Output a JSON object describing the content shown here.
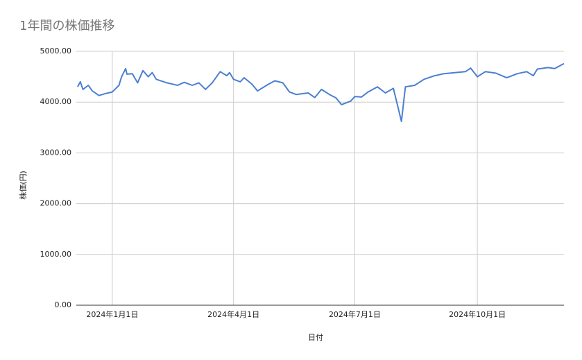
{
  "chart_data": {
    "type": "line",
    "title": "1年間の株価推移",
    "x_label": "日付",
    "y_label": "株価(円)",
    "x": [
      "2023-12-06",
      "2023-12-08",
      "2023-12-10",
      "2023-12-14",
      "2023-12-17",
      "2023-12-22",
      "2023-12-27",
      "2024-01-01",
      "2024-01-06",
      "2024-01-08",
      "2024-01-11",
      "2024-01-12",
      "2024-01-16",
      "2024-01-20",
      "2024-01-24",
      "2024-01-28",
      "2024-01-31",
      "2024-02-03",
      "2024-02-11",
      "2024-02-19",
      "2024-02-24",
      "2024-03-01",
      "2024-03-06",
      "2024-03-11",
      "2024-03-16",
      "2024-03-22",
      "2024-03-27",
      "2024-03-29",
      "2024-04-01",
      "2024-04-06",
      "2024-04-09",
      "2024-04-15",
      "2024-04-19",
      "2024-04-27",
      "2024-05-02",
      "2024-05-08",
      "2024-05-13",
      "2024-05-18",
      "2024-05-27",
      "2024-06-01",
      "2024-06-06",
      "2024-06-12",
      "2024-06-17",
      "2024-06-21",
      "2024-06-28",
      "2024-07-01",
      "2024-07-06",
      "2024-07-11",
      "2024-07-18",
      "2024-07-24",
      "2024-07-30",
      "2024-08-05",
      "2024-08-08",
      "2024-08-15",
      "2024-08-22",
      "2024-08-30",
      "2024-09-06",
      "2024-09-14",
      "2024-09-22",
      "2024-09-26",
      "2024-10-01",
      "2024-10-07",
      "2024-10-15",
      "2024-10-23",
      "2024-10-31",
      "2024-11-07",
      "2024-11-12",
      "2024-11-15",
      "2024-11-23",
      "2024-11-28",
      "2024-12-05"
    ],
    "series": [
      {
        "name": "株価",
        "color": "#4a7fd1",
        "values": [
          4300,
          4400,
          4250,
          4330,
          4220,
          4130,
          4170,
          4200,
          4330,
          4500,
          4660,
          4550,
          4560,
          4380,
          4620,
          4500,
          4580,
          4450,
          4380,
          4330,
          4390,
          4330,
          4380,
          4250,
          4380,
          4600,
          4520,
          4580,
          4450,
          4400,
          4480,
          4350,
          4220,
          4350,
          4420,
          4380,
          4200,
          4150,
          4180,
          4090,
          4250,
          4150,
          4080,
          3950,
          4020,
          4110,
          4100,
          4200,
          4300,
          4180,
          4270,
          3620,
          4300,
          4330,
          4450,
          4520,
          4560,
          4580,
          4600,
          4670,
          4500,
          4600,
          4570,
          4480,
          4560,
          4600,
          4520,
          4650,
          4680,
          4660,
          4760
        ]
      }
    ],
    "xlim": [
      "2023-12-05",
      "2024-12-05"
    ],
    "xticks": [
      {
        "value": "2024-01-01",
        "label": "2024年1月1日"
      },
      {
        "value": "2024-04-01",
        "label": "2024年4月1日"
      },
      {
        "value": "2024-07-01",
        "label": "2024年7月1日"
      },
      {
        "value": "2024-10-01",
        "label": "2024年10月1日"
      }
    ],
    "ylim": [
      0,
      5000
    ],
    "yticks": [
      {
        "value": 0,
        "label": "0.00"
      },
      {
        "value": 1000,
        "label": "1000.00"
      },
      {
        "value": 2000,
        "label": "2000.00"
      },
      {
        "value": 3000,
        "label": "3000.00"
      },
      {
        "value": 4000,
        "label": "4000.00"
      },
      {
        "value": 5000,
        "label": "5000.00"
      }
    ],
    "grid": true
  }
}
